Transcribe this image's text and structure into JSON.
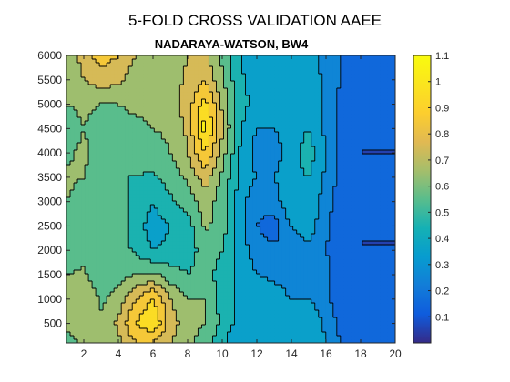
{
  "chart_data": {
    "type": "heatmap",
    "subtype": "filled-contour",
    "title": "5-FOLD CROSS VALIDATION AAEE",
    "subtitle": "NADARAYA-WATSON, BW4",
    "xlabel": "",
    "ylabel": "",
    "xlim": [
      1,
      20
    ],
    "ylim": [
      100,
      6000
    ],
    "xticks": [
      2,
      4,
      6,
      8,
      10,
      12,
      14,
      16,
      18,
      20
    ],
    "yticks": [
      500,
      1000,
      1500,
      2000,
      2500,
      3000,
      3500,
      4000,
      4500,
      5000,
      5500,
      6000
    ],
    "colormap": "parula",
    "clim": [
      0,
      1.1
    ],
    "colorbar_ticks": [
      0.1,
      0.2,
      0.3,
      0.4,
      0.5,
      0.6,
      0.7,
      0.8,
      0.9,
      1,
      1.1
    ],
    "contour_levels": [
      0.1,
      0.2,
      0.3,
      0.4,
      0.5,
      0.6,
      0.7,
      0.8,
      0.9,
      1.0
    ],
    "x": [
      1,
      2,
      3,
      4,
      5,
      6,
      7,
      8,
      9,
      10,
      11,
      12,
      13,
      14,
      15,
      16,
      17,
      18,
      19,
      20
    ],
    "y": [
      100,
      500,
      1000,
      1500,
      2000,
      2500,
      3000,
      3500,
      4000,
      4500,
      5000,
      5500,
      6000
    ],
    "z": [
      [
        0.55,
        0.62,
        0.6,
        0.68,
        0.8,
        0.78,
        0.7,
        0.62,
        0.55,
        0.42,
        0.3,
        0.35,
        0.3,
        0.32,
        0.38,
        0.3,
        0.18,
        0.12,
        0.12,
        0.12
      ],
      [
        0.62,
        0.68,
        0.62,
        0.72,
        0.9,
        1.0,
        0.75,
        0.65,
        0.6,
        0.48,
        0.35,
        0.4,
        0.35,
        0.35,
        0.4,
        0.28,
        0.15,
        0.1,
        0.1,
        0.1
      ],
      [
        0.65,
        0.7,
        0.58,
        0.65,
        0.8,
        0.92,
        0.7,
        0.6,
        0.6,
        0.45,
        0.38,
        0.35,
        0.35,
        0.3,
        0.3,
        0.22,
        0.12,
        0.1,
        0.1,
        0.1
      ],
      [
        0.6,
        0.62,
        0.52,
        0.55,
        0.6,
        0.62,
        0.55,
        0.5,
        0.55,
        0.45,
        0.38,
        0.3,
        0.28,
        0.25,
        0.28,
        0.22,
        0.15,
        0.1,
        0.1,
        0.1
      ],
      [
        0.55,
        0.55,
        0.55,
        0.55,
        0.48,
        0.4,
        0.42,
        0.45,
        0.55,
        0.5,
        0.35,
        0.25,
        0.22,
        0.22,
        0.28,
        0.2,
        0.15,
        0.1,
        0.1,
        0.1
      ],
      [
        0.55,
        0.52,
        0.55,
        0.55,
        0.45,
        0.35,
        0.4,
        0.45,
        0.62,
        0.55,
        0.35,
        0.2,
        0.15,
        0.3,
        0.35,
        0.22,
        0.12,
        0.1,
        0.1,
        0.1
      ],
      [
        0.6,
        0.55,
        0.55,
        0.52,
        0.48,
        0.4,
        0.48,
        0.55,
        0.65,
        0.55,
        0.35,
        0.22,
        0.25,
        0.4,
        0.38,
        0.25,
        0.12,
        0.1,
        0.1,
        0.1
      ],
      [
        0.62,
        0.6,
        0.55,
        0.5,
        0.5,
        0.48,
        0.55,
        0.62,
        0.75,
        0.58,
        0.38,
        0.3,
        0.3,
        0.38,
        0.4,
        0.28,
        0.15,
        0.1,
        0.1,
        0.1
      ],
      [
        0.58,
        0.62,
        0.55,
        0.52,
        0.55,
        0.55,
        0.6,
        0.7,
        0.9,
        0.65,
        0.4,
        0.25,
        0.25,
        0.35,
        0.45,
        0.3,
        0.15,
        0.1,
        0.1,
        0.1
      ],
      [
        0.55,
        0.6,
        0.55,
        0.55,
        0.58,
        0.6,
        0.62,
        0.72,
        1.05,
        0.72,
        0.42,
        0.3,
        0.3,
        0.35,
        0.4,
        0.28,
        0.15,
        0.1,
        0.1,
        0.1
      ],
      [
        0.6,
        0.62,
        0.6,
        0.6,
        0.62,
        0.62,
        0.65,
        0.75,
        0.95,
        0.68,
        0.45,
        0.35,
        0.32,
        0.35,
        0.38,
        0.28,
        0.15,
        0.1,
        0.1,
        0.1
      ],
      [
        0.62,
        0.7,
        0.75,
        0.72,
        0.65,
        0.62,
        0.65,
        0.72,
        0.8,
        0.62,
        0.42,
        0.35,
        0.32,
        0.35,
        0.35,
        0.28,
        0.18,
        0.12,
        0.12,
        0.1
      ],
      [
        0.6,
        0.75,
        0.85,
        0.8,
        0.7,
        0.65,
        0.65,
        0.7,
        0.72,
        0.58,
        0.4,
        0.35,
        0.3,
        0.32,
        0.32,
        0.28,
        0.18,
        0.15,
        0.12,
        0.1
      ]
    ]
  }
}
